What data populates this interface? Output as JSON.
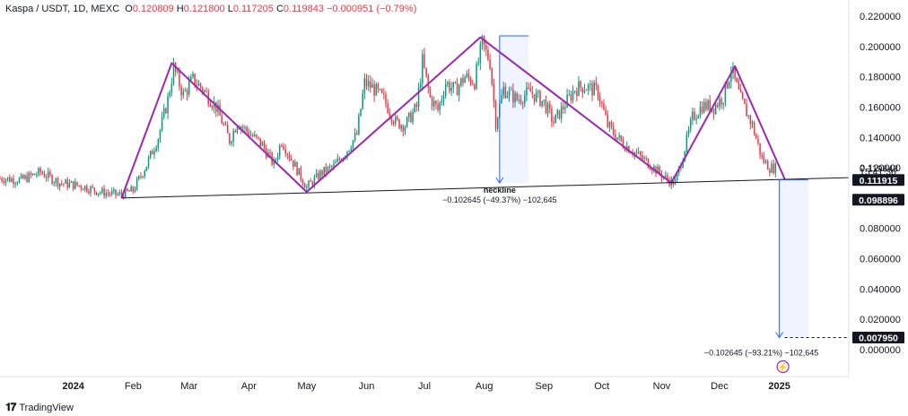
{
  "header": {
    "symbol": "Kaspa / USDT, 1D, MEXC",
    "ohlc": [
      {
        "label": "O",
        "value": "0.120809"
      },
      {
        "label": "H",
        "value": "0.121800"
      },
      {
        "label": "L",
        "value": "0.117205"
      },
      {
        "label": "C",
        "value": "0.119843"
      }
    ],
    "change": "−0.000951 (−0.79%)"
  },
  "brand": {
    "name": "TradingView",
    "icon": "tradingview-logo-icon"
  },
  "colors": {
    "up": "#089981",
    "down": "#f23645",
    "pattern": "#9c27b0",
    "measure": "#2962ff",
    "neckline": "#131722"
  },
  "chart_data": {
    "type": "candlestick",
    "ylim": [
      0,
      0.22
    ],
    "y_ticks": [
      "0.220000",
      "0.200000",
      "0.180000",
      "0.160000",
      "0.140000",
      "0.120000",
      "0.100000",
      "0.080000",
      "0.060000",
      "0.040000",
      "0.020000",
      "0.000000"
    ],
    "x_ticks": [
      {
        "label": "2024",
        "date": "2024-01-01",
        "bold": true
      },
      {
        "label": "Feb",
        "date": "2024-02-01"
      },
      {
        "label": "Mar",
        "date": "2024-03-01"
      },
      {
        "label": "Apr",
        "date": "2024-04-01"
      },
      {
        "label": "May",
        "date": "2024-05-01"
      },
      {
        "label": "Jun",
        "date": "2024-06-01"
      },
      {
        "label": "Jul",
        "date": "2024-07-01"
      },
      {
        "label": "Aug",
        "date": "2024-08-01"
      },
      {
        "label": "Sep",
        "date": "2024-09-01"
      },
      {
        "label": "Oct",
        "date": "2024-10-01"
      },
      {
        "label": "Nov",
        "date": "2024-11-01"
      },
      {
        "label": "Dec",
        "date": "2024-12-01"
      },
      {
        "label": "2025",
        "date": "2025-01-01",
        "bold": true
      }
    ],
    "x_range": [
      "2023-11-24",
      "2025-02-06"
    ],
    "price_path": [
      [
        "2023-11-24",
        0.113
      ],
      [
        "2023-12-05",
        0.112
      ],
      [
        "2023-12-15",
        0.117
      ],
      [
        "2023-12-25",
        0.11
      ],
      [
        "2024-01-05",
        0.108
      ],
      [
        "2024-01-15",
        0.104
      ],
      [
        "2024-01-25",
        0.102
      ],
      [
        "2024-02-01",
        0.105
      ],
      [
        "2024-02-08",
        0.122
      ],
      [
        "2024-02-14",
        0.14
      ],
      [
        "2024-02-19",
        0.165
      ],
      [
        "2024-02-22",
        0.186
      ],
      [
        "2024-02-27",
        0.168
      ],
      [
        "2024-03-03",
        0.178
      ],
      [
        "2024-03-08",
        0.172
      ],
      [
        "2024-03-15",
        0.16
      ],
      [
        "2024-03-22",
        0.138
      ],
      [
        "2024-03-26",
        0.15
      ],
      [
        "2024-04-01",
        0.143
      ],
      [
        "2024-04-08",
        0.135
      ],
      [
        "2024-04-14",
        0.122
      ],
      [
        "2024-04-18",
        0.138
      ],
      [
        "2024-04-22",
        0.128
      ],
      [
        "2024-05-01",
        0.107
      ],
      [
        "2024-05-08",
        0.116
      ],
      [
        "2024-05-15",
        0.121
      ],
      [
        "2024-05-21",
        0.13
      ],
      [
        "2024-05-27",
        0.142
      ],
      [
        "2024-05-31",
        0.176
      ],
      [
        "2024-06-04",
        0.173
      ],
      [
        "2024-06-10",
        0.165
      ],
      [
        "2024-06-16",
        0.15
      ],
      [
        "2024-06-21",
        0.148
      ],
      [
        "2024-06-27",
        0.16
      ],
      [
        "2024-06-30",
        0.19
      ],
      [
        "2024-07-04",
        0.166
      ],
      [
        "2024-07-08",
        0.158
      ],
      [
        "2024-07-12",
        0.176
      ],
      [
        "2024-07-17",
        0.171
      ],
      [
        "2024-07-22",
        0.18
      ],
      [
        "2024-07-27",
        0.177
      ],
      [
        "2024-07-31",
        0.202
      ],
      [
        "2024-08-04",
        0.19
      ],
      [
        "2024-08-07",
        0.15
      ],
      [
        "2024-08-11",
        0.172
      ],
      [
        "2024-08-18",
        0.165
      ],
      [
        "2024-08-25",
        0.17
      ],
      [
        "2024-09-01",
        0.163
      ],
      [
        "2024-09-06",
        0.15
      ],
      [
        "2024-09-10",
        0.158
      ],
      [
        "2024-09-17",
        0.172
      ],
      [
        "2024-09-22",
        0.174
      ],
      [
        "2024-09-29",
        0.17
      ],
      [
        "2024-10-04",
        0.148
      ],
      [
        "2024-10-11",
        0.137
      ],
      [
        "2024-10-18",
        0.13
      ],
      [
        "2024-10-26",
        0.122
      ],
      [
        "2024-11-04",
        0.112
      ],
      [
        "2024-11-08",
        0.11
      ],
      [
        "2024-11-12",
        0.128
      ],
      [
        "2024-11-17",
        0.153
      ],
      [
        "2024-11-22",
        0.161
      ],
      [
        "2024-11-28",
        0.16
      ],
      [
        "2024-12-03",
        0.167
      ],
      [
        "2024-12-07",
        0.185
      ],
      [
        "2024-12-12",
        0.165
      ],
      [
        "2024-12-18",
        0.148
      ],
      [
        "2024-12-23",
        0.126
      ],
      [
        "2024-12-27",
        0.12
      ],
      [
        "2024-12-30",
        0.1198
      ]
    ],
    "pattern_lines": [
      {
        "name": "pattern-zigzag",
        "points": [
          [
            "2024-01-26",
            0.1
          ],
          [
            "2024-02-21",
            0.189
          ],
          [
            "2024-05-01",
            0.104
          ],
          [
            "2024-07-30",
            0.206
          ],
          [
            "2024-11-06",
            0.11
          ],
          [
            "2024-12-09",
            0.187
          ],
          [
            "2025-01-04",
            0.112
          ]
        ]
      },
      {
        "name": "neckline-line",
        "points": [
          [
            "2024-01-26",
            0.1
          ],
          [
            "2025-02-06",
            0.1135
          ]
        ]
      }
    ],
    "neckline_label": "neckline",
    "measures": [
      {
        "name": "measure-top",
        "date": "2024-08-09",
        "date_end": "2024-08-24",
        "from": 0.207,
        "to": 0.11,
        "label": "−0.102645 (−49.37%) −102,645"
      },
      {
        "name": "measure-target",
        "date": "2025-01-01",
        "date_end": "2025-01-16",
        "from": 0.112,
        "to": 0.008,
        "label": "−0.102645 (−93.21%) −102,645"
      }
    ],
    "price_labels": [
      {
        "name": "current-price-label",
        "value": 0.119843,
        "text": "0.119843",
        "style": "plain"
      },
      {
        "name": "countdown-label",
        "value": 0.1178,
        "text": "15:41:36",
        "style": "plain"
      },
      {
        "name": "neckline-price-label",
        "value": 0.111915,
        "text": "0.111915",
        "style": "dark"
      },
      {
        "name": "low-price-label",
        "value": 0.098896,
        "text": "0.098896",
        "style": "dark"
      },
      {
        "name": "target-price-label",
        "value": 0.00795,
        "text": "0.007950",
        "style": "dark"
      }
    ],
    "target_marker": {
      "date": "2025-01-01",
      "value": 0.008
    }
  }
}
